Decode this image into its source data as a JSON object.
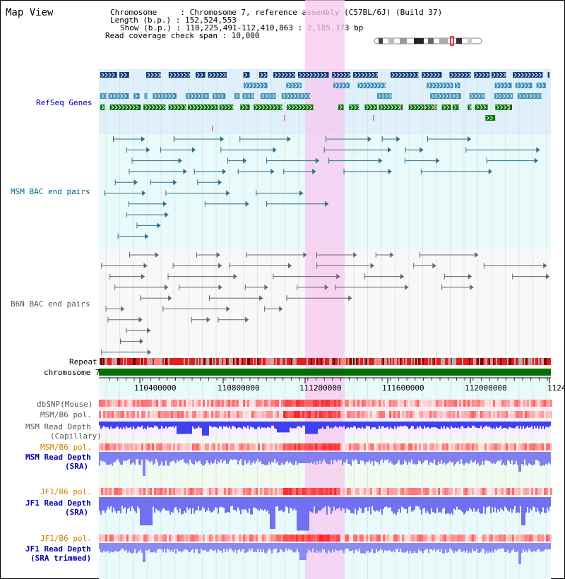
{
  "title": "Map View",
  "info": {
    "line1": "Chromosome     : Chromosome 7, reference assembly (C57BL/6J) (Build 37)",
    "line2": "Length (b.p.) : 152,524,553",
    "line3": "Show (b.p.) : 110,225,491-112,410,863 : 2,185,373 bp",
    "line4": "Read coverage check span : 10,000"
  },
  "tracks": {
    "refseq": "RefSeq Genes",
    "msm_bac": "MSM BAC end pairs",
    "b6n_bac": "B6N BAC end pairs",
    "repeat": "Repeat",
    "chrom": "chromosome 7",
    "dbsnp": "dbSNP(Mouse)",
    "msm_pol": "MSM/B6 pol.",
    "msm_cap_1": "MSM Read Depth",
    "msm_cap_2": "(Capillary)",
    "msm_pol2": "MSM/B6 pol.",
    "msm_sra_1": "MSM Read Depth",
    "msm_sra_2": "(SRA)",
    "jf1_pol": "JF1/B6 pol.",
    "jf1_sra_1": "JF1 Read Depth",
    "jf1_sra_2": "(SRA)",
    "jf1_pol2": "JF1/B6 pol.",
    "jf1_trim_1": "JF1 Read Depth",
    "jf1_trim_2": "(SRA trimmed)"
  },
  "ruler": {
    "ticks": [
      "110400000",
      "110800000",
      "111200000",
      "111600000",
      "112000000",
      "1124"
    ]
  },
  "colors": {
    "highlight": "#f8c8f0",
    "refseq_dark": "#0b3a78",
    "refseq_mid": "#3b8fb8",
    "refseq_green": "#007000",
    "chrom_green": "#007000",
    "repeat_red": "#d01010",
    "depth_blue": "#3030e0",
    "depth_light": "#8080f0"
  }
}
